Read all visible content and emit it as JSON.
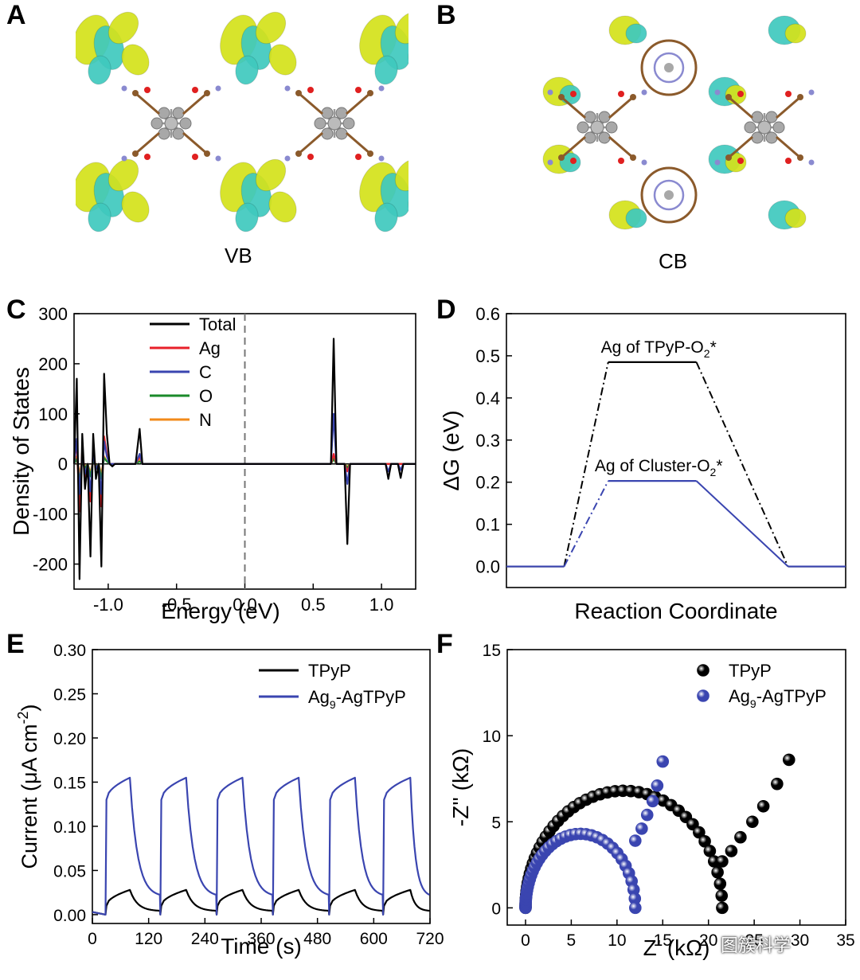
{
  "panels": {
    "A": {
      "letter": "A",
      "caption": "VB"
    },
    "B": {
      "letter": "B",
      "caption": "CB"
    },
    "C": {
      "letter": "C"
    },
    "D": {
      "letter": "D"
    },
    "E": {
      "letter": "E"
    },
    "F": {
      "letter": "F"
    }
  },
  "colors": {
    "isosurface_yellow": "#d4e21b",
    "isosurface_cyan": "#3fc9be",
    "atom_carbon": "#8b5a2b",
    "atom_silver": "#a8a8a8",
    "atom_oxygen": "#e02020",
    "atom_nitrogen": "#8a8ad0",
    "black": "#000000",
    "blue": "#3a45b0",
    "red": "#e8202a",
    "green": "#1a8a2a",
    "orange": "#f28a1a"
  },
  "watermark": "图簇科学",
  "chart_data": [
    {
      "id": "C",
      "type": "line",
      "xlabel": "Energy (eV)",
      "ylabel": "Density of States",
      "xlim": [
        -1.25,
        1.25
      ],
      "ylim": [
        -250,
        300
      ],
      "xticks": [
        -1.0,
        -0.5,
        0.0,
        0.5,
        1.0
      ],
      "xtick_labels": [
        "-1.0",
        "-0.5",
        "0.0",
        "0.5",
        "1.0"
      ],
      "yticks": [
        -200,
        -100,
        0,
        100,
        200,
        300
      ],
      "ytick_labels": [
        "-200",
        "-100",
        "0",
        "100",
        "200",
        "300"
      ],
      "fermi_level": 0.0,
      "legend_placement": "top-left",
      "series": [
        {
          "name": "Total",
          "color": "#000000",
          "x": [
            -1.25,
            -1.23,
            -1.21,
            -1.19,
            -1.17,
            -1.15,
            -1.13,
            -1.11,
            -1.09,
            -1.07,
            -1.05,
            -1.03,
            -1.01,
            -0.99,
            -0.97,
            -0.95,
            -0.9,
            -0.8,
            -0.77,
            -0.75,
            -0.73,
            -0.7,
            0.6,
            0.63,
            0.65,
            0.67,
            0.7,
            0.73,
            0.75,
            0.77,
            0.8,
            1.0,
            1.03,
            1.05,
            1.07,
            1.1,
            1.12,
            1.14,
            1.16,
            1.18,
            1.2,
            1.25
          ],
          "y": [
            0,
            170,
            -230,
            60,
            -50,
            0,
            -185,
            60,
            -30,
            0,
            -205,
            180,
            60,
            0,
            -5,
            0,
            0,
            0,
            70,
            0,
            0,
            0,
            0,
            0,
            250,
            0,
            0,
            0,
            -160,
            0,
            0,
            0,
            0,
            -30,
            0,
            0,
            0,
            -28,
            0,
            0,
            0,
            0
          ]
        },
        {
          "name": "Ag",
          "color": "#e8202a",
          "x": [
            -1.25,
            -1.23,
            -1.21,
            -1.19,
            -1.17,
            -1.15,
            -1.13,
            -1.11,
            -1.09,
            -1.07,
            -1.05,
            -1.03,
            -1.01,
            -0.99,
            -0.97,
            -0.95,
            -0.9,
            -0.8,
            -0.77,
            -0.75,
            -0.73,
            -0.7,
            0.6,
            0.63,
            0.65,
            0.67,
            0.7,
            0.73,
            0.75,
            0.77,
            0.8,
            1.25
          ],
          "y": [
            0,
            45,
            -95,
            30,
            -25,
            0,
            -75,
            25,
            -10,
            0,
            -85,
            55,
            20,
            0,
            0,
            0,
            0,
            0,
            15,
            0,
            0,
            0,
            0,
            0,
            20,
            0,
            0,
            0,
            -15,
            0,
            0,
            0
          ]
        },
        {
          "name": "C",
          "color": "#3a45b0",
          "x": [
            -1.25,
            -1.23,
            -1.21,
            -1.19,
            -1.17,
            -1.15,
            -1.13,
            -1.11,
            -1.09,
            -1.07,
            -1.05,
            -1.03,
            -1.01,
            -0.99,
            -0.97,
            -0.95,
            -0.9,
            -0.8,
            -0.77,
            -0.75,
            -0.73,
            -0.7,
            0.6,
            0.63,
            0.65,
            0.67,
            0.7,
            0.73,
            0.75,
            0.77,
            0.8,
            1.0,
            1.03,
            1.05,
            1.07,
            1.1,
            1.12,
            1.14,
            1.16,
            1.18,
            1.2,
            1.25
          ],
          "y": [
            0,
            50,
            -60,
            20,
            -20,
            0,
            -55,
            20,
            -10,
            0,
            -60,
            45,
            15,
            0,
            0,
            0,
            0,
            0,
            20,
            0,
            0,
            0,
            0,
            0,
            100,
            0,
            0,
            0,
            -40,
            0,
            0,
            0,
            0,
            -15,
            0,
            0,
            0,
            -12,
            0,
            0,
            0,
            0
          ]
        },
        {
          "name": "O",
          "color": "#1a8a2a",
          "x": [
            -1.25,
            -1.23,
            -1.21,
            -1.19,
            -1.17,
            -1.15,
            -1.13,
            -1.11,
            -1.09,
            -1.07,
            -1.05,
            -1.03,
            -1.01,
            -0.99,
            -0.97,
            -0.95,
            -0.9,
            -0.8,
            -0.77,
            -0.75,
            -0.73,
            -0.7,
            0.6,
            0.63,
            0.65,
            0.67,
            0.7,
            0.73,
            0.75,
            0.77,
            0.8,
            1.25
          ],
          "y": [
            0,
            10,
            -35,
            5,
            -8,
            0,
            -25,
            8,
            -5,
            0,
            -30,
            12,
            5,
            0,
            0,
            0,
            0,
            0,
            5,
            0,
            0,
            0,
            0,
            0,
            10,
            0,
            0,
            0,
            -8,
            0,
            0,
            0
          ]
        },
        {
          "name": "N",
          "color": "#f28a1a",
          "x": [
            -1.25,
            -1.23,
            -1.21,
            -1.19,
            -1.17,
            -1.15,
            -1.13,
            -1.11,
            -1.09,
            -1.07,
            -1.05,
            -1.03,
            -1.01,
            -0.99,
            -0.97,
            -0.95,
            -0.9,
            -0.8,
            -0.77,
            -0.75,
            -0.73,
            -0.7,
            0.6,
            0.63,
            0.65,
            0.67,
            0.7,
            0.73,
            0.75,
            0.77,
            0.8,
            1.25
          ],
          "y": [
            0,
            15,
            -20,
            8,
            -6,
            0,
            -18,
            8,
            -4,
            0,
            -20,
            15,
            5,
            0,
            0,
            0,
            0,
            0,
            8,
            0,
            0,
            0,
            0,
            0,
            15,
            0,
            0,
            0,
            -6,
            0,
            0,
            0
          ]
        }
      ]
    },
    {
      "id": "D",
      "type": "line",
      "xlabel": "Reaction Coordinate",
      "ylabel": "ΔG (eV)",
      "ylim": [
        -0.05,
        0.6
      ],
      "yticks": [
        0.0,
        0.1,
        0.2,
        0.3,
        0.4,
        0.5,
        0.6
      ],
      "ytick_labels": [
        "0.0",
        "0.1",
        "0.2",
        "0.3",
        "0.4",
        "0.5",
        "0.6"
      ],
      "xlim": [
        0,
        10
      ],
      "series": [
        {
          "name": "Ag of TPyP-O₂*",
          "color": "#000000",
          "label_parts": [
            "Ag of TPyP-O",
            "2",
            "*"
          ],
          "levels": [
            [
              0.0,
              1.7,
              0.0
            ],
            [
              3.0,
              5.6,
              0.485
            ],
            [
              8.3,
              10.0,
              0.0
            ]
          ]
        },
        {
          "name": "Ag of Cluster-O₂*",
          "color": "#3a45b0",
          "label_parts": [
            "Ag of Cluster-O",
            "2",
            "*"
          ],
          "levels": [
            [
              0.0,
              1.7,
              0.0
            ],
            [
              3.0,
              5.6,
              0.203
            ],
            [
              8.3,
              10.0,
              0.0
            ]
          ]
        }
      ]
    },
    {
      "id": "E",
      "type": "line",
      "xlabel": "Time (s)",
      "ylabel": "Current (μA cm⁻²)",
      "ylabel_parts": [
        "Current (μA cm",
        "-2",
        ")"
      ],
      "xlim": [
        0,
        720
      ],
      "ylim": [
        -0.01,
        0.3
      ],
      "xticks": [
        0,
        120,
        240,
        360,
        480,
        600,
        720
      ],
      "xtick_labels": [
        "0",
        "120",
        "240",
        "360",
        "480",
        "600",
        "720"
      ],
      "yticks": [
        0.0,
        0.05,
        0.1,
        0.15,
        0.2,
        0.25,
        0.3
      ],
      "ytick_labels": [
        "0.00",
        "0.05",
        "0.10",
        "0.15",
        "0.20",
        "0.25",
        "0.30"
      ],
      "legend_placement": "top-right",
      "cycle_starts": [
        28,
        145,
        265,
        385,
        505,
        620
      ],
      "cycle_peaks": [
        80,
        200,
        320,
        440,
        560,
        678
      ],
      "series": [
        {
          "name": "TPyP",
          "color": "#000000",
          "label_parts": [
            "TPyP"
          ],
          "baseline": 0.0,
          "on_start": 0.01,
          "on_end": 0.028,
          "off_end": 0.004
        },
        {
          "name": "Ag₉-AgTPyP",
          "color": "#3a45b0",
          "label_parts": [
            "Ag",
            "9",
            "-AgTPyP"
          ],
          "baseline": 0.0,
          "on_start": 0.13,
          "on_end": 0.155,
          "off_end": 0.02
        }
      ]
    },
    {
      "id": "F",
      "type": "scatter",
      "xlabel": "Z' (kΩ)",
      "ylabel": "-Z'' (kΩ)",
      "xlim": [
        -2,
        35
      ],
      "ylim": [
        -1,
        15
      ],
      "xticks": [
        0,
        5,
        10,
        15,
        20,
        25,
        30,
        35
      ],
      "xtick_labels": [
        "0",
        "5",
        "10",
        "15",
        "20",
        "25",
        "30",
        "35"
      ],
      "yticks": [
        0,
        5,
        10,
        15
      ],
      "ytick_labels": [
        "0",
        "5",
        "10",
        "15"
      ],
      "legend_placement": "top-right",
      "series": [
        {
          "name": "TPyP",
          "color": "#000000",
          "label_parts": [
            "TPyP"
          ],
          "arc": {
            "x0": 0.0,
            "x1": 21.5,
            "height": 6.8
          },
          "tail": [
            [
              21.5,
              2.7
            ],
            [
              22.5,
              3.3
            ],
            [
              23.5,
              4.1
            ],
            [
              24.8,
              5.0
            ],
            [
              26.0,
              5.9
            ],
            [
              27.5,
              7.2
            ],
            [
              28.8,
              8.6
            ]
          ]
        },
        {
          "name": "Ag₉-AgTPyP",
          "color": "#3a45b0",
          "label_parts": [
            "Ag",
            "9",
            "-AgTPyP"
          ],
          "arc": {
            "x0": 0.0,
            "x1": 12.0,
            "height": 4.3
          },
          "tail": [
            [
              12.0,
              3.9
            ],
            [
              12.7,
              4.6
            ],
            [
              13.3,
              5.4
            ],
            [
              13.9,
              6.2
            ],
            [
              14.4,
              7.1
            ],
            [
              15.0,
              8.5
            ]
          ]
        }
      ]
    }
  ]
}
